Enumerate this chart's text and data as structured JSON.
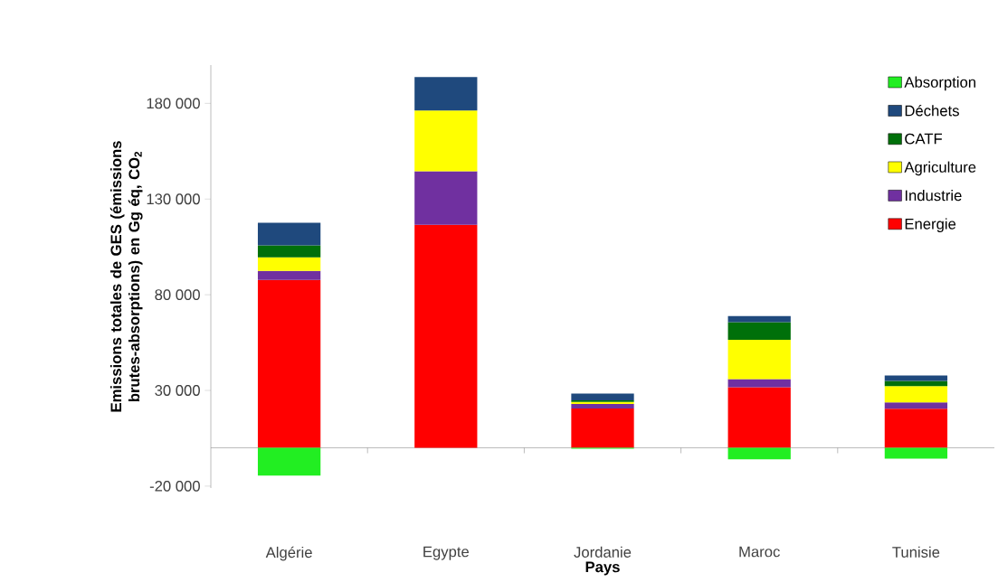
{
  "chart_data": {
    "type": "bar",
    "stacked": true,
    "xlabel": "Pays",
    "ylabel": "Emissions totales de GES (émissions brutes-absorptions) en Gg éq, CO$_{2}$",
    "categories": [
      "Algérie",
      "Egypte",
      "Jordanie",
      "Maroc",
      "Tunisie"
    ],
    "series": [
      {
        "name": "Energie",
        "color": "#ff0000",
        "values": [
          87700,
          116500,
          20500,
          31600,
          20400
        ]
      },
      {
        "name": "Industrie",
        "color": "#7030a0",
        "values": [
          4700,
          28000,
          2400,
          4300,
          3300
        ]
      },
      {
        "name": "Agriculture",
        "color": "#ffff00",
        "values": [
          7100,
          31800,
          1100,
          20500,
          8500
        ]
      },
      {
        "name": "CATF",
        "color": "#00700a",
        "values": [
          6300,
          0,
          800,
          9200,
          2800
        ]
      },
      {
        "name": "Déchets",
        "color": "#1f497d",
        "values": [
          11800,
          17500,
          3600,
          3200,
          2800
        ]
      },
      {
        "name": "Absorption",
        "color": "#22ee22",
        "values": [
          -14500,
          0,
          -500,
          -6000,
          -5700
        ]
      }
    ],
    "ylim": [
      -21000,
      200000
    ],
    "yticks": [
      {
        "value": -20000,
        "label": "-20 000"
      },
      {
        "value": 30000,
        "label": "30 000"
      },
      {
        "value": 80000,
        "label": "80 000"
      },
      {
        "value": 130000,
        "label": "130 000"
      },
      {
        "value": 180000,
        "label": "180 000"
      }
    ],
    "legend": "top right"
  }
}
